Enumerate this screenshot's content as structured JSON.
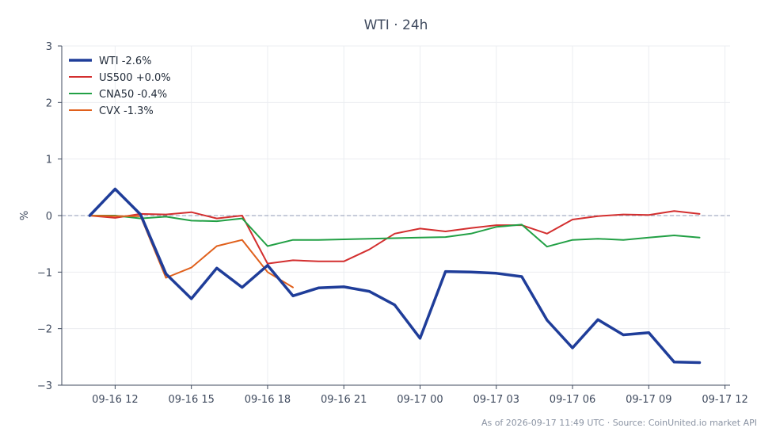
{
  "chart_data": {
    "type": "line",
    "title": "WTI · 24h",
    "ylabel": "%",
    "xlabel": "",
    "ylim": [
      -3,
      3
    ],
    "yticks": [
      -3,
      -2,
      -1,
      0,
      1,
      2,
      3
    ],
    "ytick_labels": [
      "−3",
      "−2",
      "−1",
      "0",
      "1",
      "2",
      "3"
    ],
    "xticks": [
      12,
      15,
      18,
      21,
      24,
      27,
      30,
      33,
      36
    ],
    "xtick_labels": [
      "09-16 12",
      "09-16 15",
      "09-16 18",
      "09-16 21",
      "09-17 00",
      "09-17 03",
      "09-17 06",
      "09-17 09",
      "09-17 12"
    ],
    "x_unit": "hours from 2026-09-16 00:00",
    "grid": true,
    "baseline": 0,
    "legend_position": "top-left",
    "series": [
      {
        "name": "WTI -2.6%",
        "color": "#1f3d99",
        "emphasis": true,
        "x": [
          11,
          12,
          13,
          14,
          15,
          16,
          17,
          18,
          19,
          20,
          21,
          22,
          23,
          24,
          25,
          26,
          27,
          28,
          29,
          30,
          31,
          32,
          33,
          34,
          35
        ],
        "values": [
          0.0,
          0.47,
          0.02,
          -1.03,
          -1.47,
          -0.93,
          -1.27,
          -0.88,
          -1.42,
          -1.28,
          -1.26,
          -1.34,
          -1.58,
          -2.17,
          -0.99,
          -1.0,
          -1.02,
          -1.08,
          -1.85,
          -2.34,
          -1.84,
          -2.11,
          -2.07,
          -2.59,
          -2.6
        ]
      },
      {
        "name": "US500 +0.0%",
        "color": "#d32f2f",
        "x": [
          11,
          12,
          13,
          14,
          15,
          16,
          17,
          18,
          19,
          20,
          21,
          22,
          23,
          24,
          25,
          26,
          27,
          28,
          29,
          30,
          31,
          32,
          33,
          34,
          35
        ],
        "values": [
          0.0,
          -0.04,
          0.03,
          0.02,
          0.06,
          -0.05,
          0.0,
          -0.85,
          -0.79,
          -0.81,
          -0.81,
          -0.6,
          -0.32,
          -0.23,
          -0.28,
          -0.22,
          -0.17,
          -0.17,
          -0.32,
          -0.07,
          -0.01,
          0.02,
          0.01,
          0.08,
          0.03
        ]
      },
      {
        "name": "CNA50 -0.4%",
        "color": "#22a045",
        "x": [
          11,
          12,
          13,
          14,
          15,
          16,
          17,
          18,
          19,
          20,
          21,
          22,
          23,
          24,
          25,
          26,
          27,
          28,
          29,
          30,
          31,
          32,
          33,
          34,
          35
        ],
        "values": [
          0.0,
          0.0,
          -0.05,
          -0.02,
          -0.09,
          -0.1,
          -0.05,
          -0.54,
          -0.43,
          -0.43,
          -0.42,
          -0.41,
          -0.4,
          -0.39,
          -0.38,
          -0.32,
          -0.2,
          -0.16,
          -0.55,
          -0.43,
          -0.41,
          -0.43,
          -0.39,
          -0.35,
          -0.39
        ]
      },
      {
        "name": "CVX -1.3%",
        "color": "#e0601c",
        "x": [
          11,
          12,
          13,
          14,
          15,
          16,
          17,
          18,
          19
        ],
        "values": [
          0.0,
          -0.01,
          -0.01,
          -1.1,
          -0.92,
          -0.54,
          -0.43,
          -1.0,
          -1.27
        ]
      }
    ]
  },
  "footer": {
    "text": "As of 2026-09-17 11:49 UTC · Source: CoinUnited.io market API"
  }
}
